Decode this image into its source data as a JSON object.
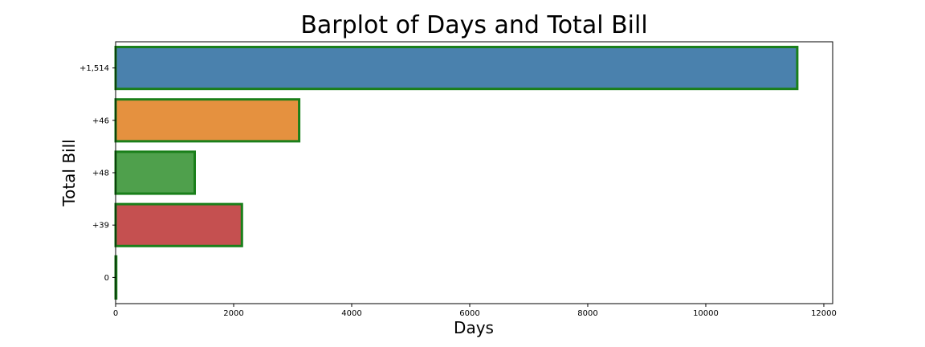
{
  "chart_data": {
    "type": "bar",
    "orientation": "horizontal",
    "title": "Barplot of Days and Total Bill",
    "xlabel": "Days",
    "ylabel": "Total Bill",
    "categories": [
      "+1,514",
      "+46",
      "+48",
      "+39",
      "0"
    ],
    "values": [
      11550,
      3110,
      1340,
      2140,
      10
    ],
    "colors": [
      "#4a81ad",
      "#e5913f",
      "#4fa04c",
      "#c55050",
      "#4a81ad"
    ],
    "edge_color": "#1a7f1a",
    "xlim": [
      0,
      12150
    ],
    "xticks": [
      0,
      2000,
      4000,
      6000,
      8000,
      10000,
      12000
    ],
    "xtick_labels": [
      "0",
      "2000",
      "4000",
      "6000",
      "8000",
      "10000",
      "12000"
    ],
    "grid": false,
    "legend": "none"
  }
}
